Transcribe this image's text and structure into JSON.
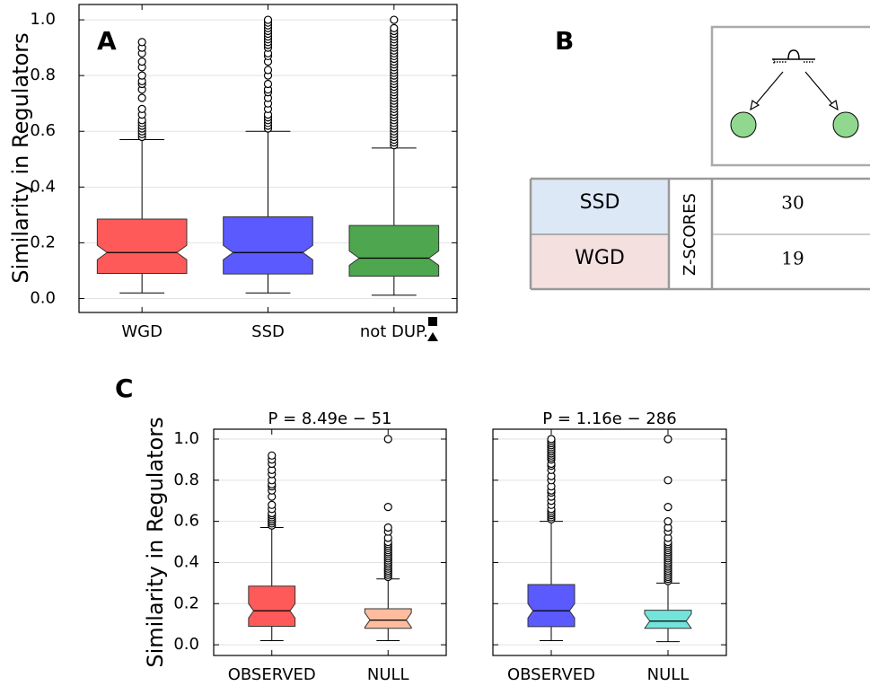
{
  "chart_data": [
    {
      "type": "box",
      "panel_label": "A",
      "ylabel": "Similarity in Regulators",
      "categories": [
        "WGD",
        "SSD",
        "not DUP."
      ],
      "ylim": [
        -0.05,
        1.055
      ],
      "yticks": [
        {
          "value": 0,
          "label": "0.0"
        },
        0.2,
        0.4,
        0.6,
        0.8,
        {
          "value": 1,
          "label": "1.0"
        }
      ],
      "grid": true,
      "boxes": [
        {
          "color": "#ff5a5a",
          "whisker_low": 0.02,
          "q1": 0.09,
          "median": 0.165,
          "q3": 0.285,
          "whisker_high": 0.57,
          "outliers": [
            0.58,
            0.59,
            0.6,
            0.61,
            0.62,
            0.63,
            0.64,
            0.66,
            0.68,
            0.72,
            0.75,
            0.77,
            0.78,
            0.8,
            0.83,
            0.85,
            0.88,
            0.9,
            0.92
          ]
        },
        {
          "color": "#5a5aff",
          "whisker_low": 0.02,
          "q1": 0.088,
          "median": 0.165,
          "q3": 0.293,
          "whisker_high": 0.6,
          "outliers": [
            0.61,
            0.62,
            0.63,
            0.64,
            0.65,
            0.66,
            0.68,
            0.7,
            0.72,
            0.74,
            0.75,
            0.77,
            0.8,
            0.82,
            0.85,
            0.87,
            0.88,
            0.9,
            0.91,
            0.92,
            0.93,
            0.94,
            0.95,
            0.96,
            0.97,
            0.98,
            0.99,
            1.0
          ]
        },
        {
          "color": "#4ea64e",
          "whisker_low": 0.012,
          "q1": 0.08,
          "median": 0.145,
          "q3": 0.262,
          "whisker_high": 0.54,
          "outliers": [
            0.55,
            0.56,
            0.57,
            0.58,
            0.59,
            0.6,
            0.61,
            0.62,
            0.63,
            0.64,
            0.65,
            0.66,
            0.67,
            0.68,
            0.69,
            0.7,
            0.71,
            0.72,
            0.73,
            0.74,
            0.75,
            0.76,
            0.77,
            0.78,
            0.79,
            0.8,
            0.81,
            0.82,
            0.83,
            0.84,
            0.85,
            0.86,
            0.87,
            0.88,
            0.89,
            0.9,
            0.91,
            0.92,
            0.93,
            0.94,
            0.95,
            0.96,
            0.97,
            1.0
          ]
        }
      ]
    },
    {
      "type": "box",
      "panel_label": "C",
      "title": "P = 8.49e − 51",
      "ylabel": "Similarity in Regulators",
      "categories": [
        "OBSERVED",
        "NULL"
      ],
      "ylim": [
        -0.052,
        1.048
      ],
      "yticks": [
        {
          "value": 0,
          "label": "0.0"
        },
        0.2,
        0.4,
        0.6,
        0.8,
        {
          "value": 1,
          "label": "1.0"
        }
      ],
      "grid": true,
      "boxes": [
        {
          "color": "#ff5a5a",
          "whisker_low": 0.02,
          "q1": 0.09,
          "median": 0.165,
          "q3": 0.285,
          "whisker_high": 0.57,
          "outliers": [
            0.58,
            0.59,
            0.6,
            0.61,
            0.62,
            0.63,
            0.64,
            0.66,
            0.68,
            0.72,
            0.75,
            0.77,
            0.78,
            0.8,
            0.83,
            0.85,
            0.88,
            0.9,
            0.92
          ]
        },
        {
          "color": "#ffbc9e",
          "whisker_low": 0.02,
          "q1": 0.08,
          "median": 0.12,
          "q3": 0.175,
          "whisker_high": 0.32,
          "outliers": [
            0.33,
            0.34,
            0.35,
            0.36,
            0.37,
            0.38,
            0.39,
            0.4,
            0.41,
            0.42,
            0.43,
            0.44,
            0.45,
            0.46,
            0.47,
            0.48,
            0.49,
            0.5,
            0.52,
            0.55,
            0.57,
            0.67,
            1.0
          ]
        }
      ]
    },
    {
      "type": "box",
      "title": "P = 1.16e − 286",
      "categories": [
        "OBSERVED",
        "NULL"
      ],
      "ylim": [
        -0.052,
        1.048
      ],
      "yticks": [
        0,
        0.2,
        0.4,
        0.6,
        0.8,
        1
      ],
      "ytick_labels": false,
      "grid": true,
      "boxes": [
        {
          "color": "#5a5aff",
          "whisker_low": 0.02,
          "q1": 0.088,
          "median": 0.165,
          "q3": 0.293,
          "whisker_high": 0.6,
          "outliers": [
            0.61,
            0.62,
            0.63,
            0.64,
            0.65,
            0.66,
            0.68,
            0.7,
            0.72,
            0.74,
            0.75,
            0.77,
            0.8,
            0.82,
            0.85,
            0.87,
            0.88,
            0.9,
            0.91,
            0.92,
            0.93,
            0.94,
            0.95,
            0.96,
            0.97,
            0.98,
            0.99,
            1.0
          ]
        },
        {
          "color": "#72e4dc",
          "whisker_low": 0.015,
          "q1": 0.08,
          "median": 0.115,
          "q3": 0.168,
          "whisker_high": 0.3,
          "outliers": [
            0.31,
            0.32,
            0.33,
            0.34,
            0.35,
            0.36,
            0.37,
            0.38,
            0.39,
            0.4,
            0.41,
            0.42,
            0.43,
            0.44,
            0.45,
            0.46,
            0.47,
            0.48,
            0.49,
            0.5,
            0.52,
            0.55,
            0.57,
            0.6,
            0.67,
            0.8,
            1.0
          ]
        }
      ]
    }
  ],
  "panel_b": {
    "label": "B",
    "column_header": "Z-SCORES",
    "rows": [
      {
        "name": "SSD",
        "value": 30
      },
      {
        "name": "WGD",
        "value": 19
      }
    ]
  }
}
